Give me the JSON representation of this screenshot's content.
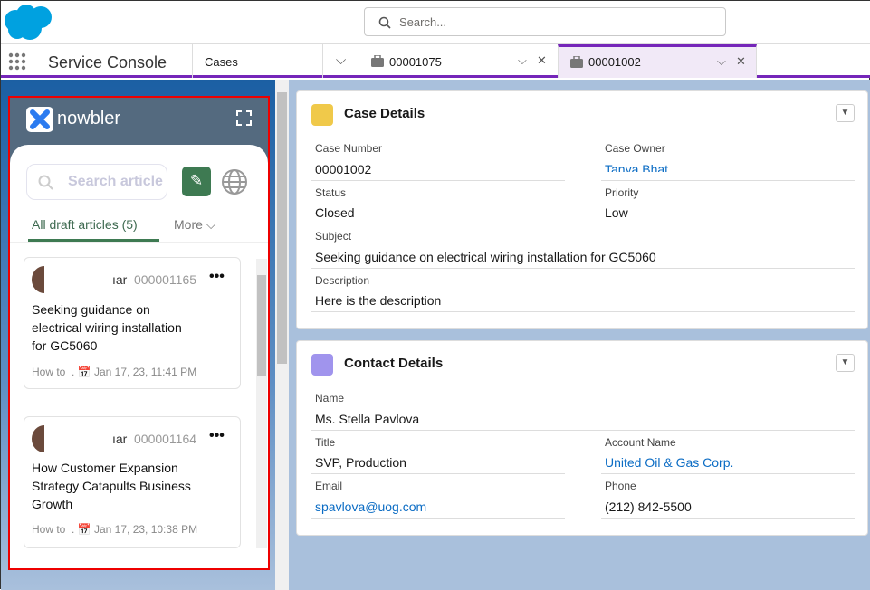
{
  "header": {
    "search_placeholder": "Search..."
  },
  "nav": {
    "app_name": "Service Console",
    "object_tab": "Cases",
    "tabs": [
      {
        "label": "00001075"
      },
      {
        "label": "00001002"
      }
    ]
  },
  "nowbler": {
    "logo_text": "nowbler",
    "search_placeholder": "Search article",
    "tab_active": "All draft articles (5)",
    "tab_more": "More",
    "articles": [
      {
        "author_fragment": "ıar",
        "number": "000001165",
        "title": "Seeking guidance on electrical wiring installation for GC5060",
        "type": "How to",
        "date": "Jan 17, 23, 11:41 PM"
      },
      {
        "author_fragment": "ıar",
        "number": "000001164",
        "title": "How Customer Expansion Strategy Catapults Business Growth",
        "type": "How to",
        "date": "Jan 17, 23, 10:38 PM"
      }
    ]
  },
  "case_details": {
    "title": "Case Details",
    "case_number_label": "Case Number",
    "case_number": "00001002",
    "owner_label": "Case Owner",
    "owner": "Tanya Bhat",
    "status_label": "Status",
    "status": "Closed",
    "priority_label": "Priority",
    "priority": "Low",
    "subject_label": "Subject",
    "subject": "Seeking guidance on electrical wiring installation for GC5060",
    "description_label": "Description",
    "description": "Here is the description"
  },
  "contact_details": {
    "title": "Contact Details",
    "name_label": "Name",
    "name": "Ms. Stella Pavlova",
    "title_label": "Title",
    "title_value": "SVP, Production",
    "account_label": "Account Name",
    "account": "United Oil & Gas Corp.",
    "email_label": "Email",
    "email": "spavlova@uog.com",
    "phone_label": "Phone",
    "phone": "(212) 842-5500"
  },
  "colors": {
    "brand": "#00a1e0",
    "tab_accent": "#7526b9",
    "nowbler_green": "#3e7a52",
    "link": "#0b6cc4"
  }
}
